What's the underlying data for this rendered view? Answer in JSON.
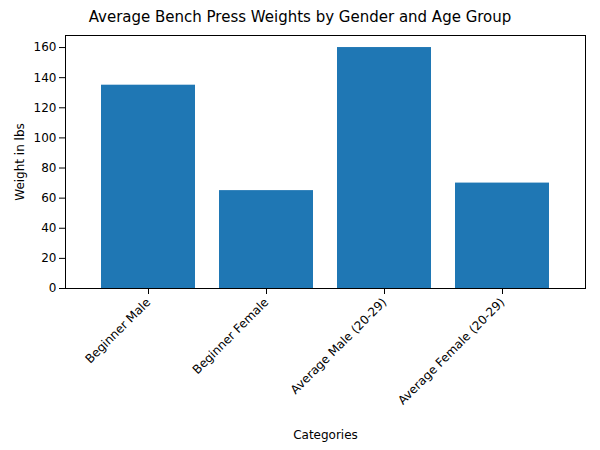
{
  "chart_data": {
    "type": "bar",
    "title": "Average Bench Press Weights by Gender and Age Group",
    "categories": [
      "Beginner Male",
      "Beginner Female",
      "Average Male (20-29)",
      "Average Female (20-29)"
    ],
    "values": [
      135,
      65,
      160,
      70
    ],
    "color": "#1f77b4",
    "x_label": "Categories",
    "y_label": "Weight in lbs",
    "ylim": [
      0,
      168
    ],
    "yticks": [
      0,
      20,
      40,
      60,
      80,
      100,
      120,
      140,
      160
    ],
    "grid": false
  }
}
